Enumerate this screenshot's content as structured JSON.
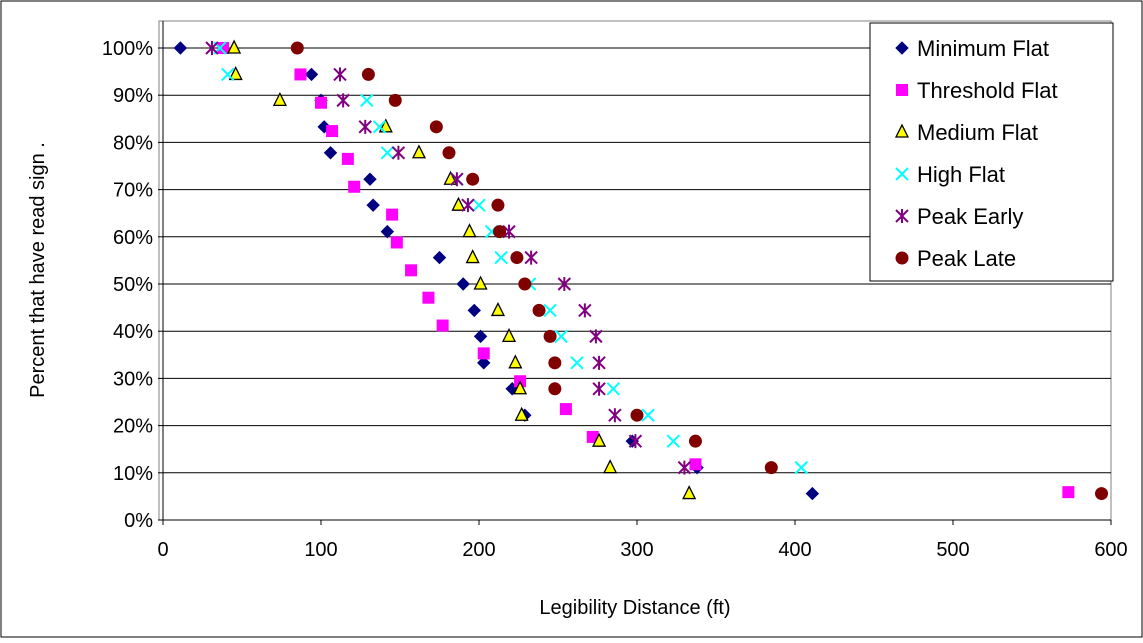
{
  "chart_data": {
    "type": "scatter",
    "title": "",
    "xlabel": "Legibility Distance (ft)",
    "ylabel": "Percent that have read sign .",
    "xlim": [
      0,
      600
    ],
    "ylim": [
      0,
      100
    ],
    "x_ticks": [
      "0",
      "100",
      "200",
      "300",
      "400",
      "500",
      "600"
    ],
    "y_ticks": [
      "0%",
      "10%",
      "20%",
      "30%",
      "40%",
      "50%",
      "60%",
      "70%",
      "80%",
      "90%",
      "100%"
    ],
    "grid": "horizontal",
    "legend_position": "top-right",
    "series": [
      {
        "name": "Minimum Flat",
        "marker": "diamond",
        "color": "#000080",
        "points": [
          [
            11,
            100
          ],
          [
            94,
            94.4
          ],
          [
            100,
            88.9
          ],
          [
            102,
            83.3
          ],
          [
            106,
            77.8
          ],
          [
            131,
            72.2
          ],
          [
            133,
            66.7
          ],
          [
            142,
            61.1
          ],
          [
            175,
            55.6
          ],
          [
            190,
            50
          ],
          [
            197,
            44.4
          ],
          [
            201,
            38.9
          ],
          [
            203,
            33.3
          ],
          [
            221,
            27.8
          ],
          [
            229,
            22.2
          ],
          [
            297,
            16.7
          ],
          [
            338,
            11.1
          ],
          [
            411,
            5.6
          ]
        ]
      },
      {
        "name": "Threshold Flat",
        "marker": "square",
        "color": "#FF00FF",
        "points": [
          [
            38,
            100
          ],
          [
            87,
            94.4
          ],
          [
            100,
            88.4
          ],
          [
            107,
            82.4
          ],
          [
            117,
            76.5
          ],
          [
            121,
            70.6
          ],
          [
            145,
            64.7
          ],
          [
            148,
            58.8
          ],
          [
            157,
            52.9
          ],
          [
            168,
            47.1
          ],
          [
            177,
            41.2
          ],
          [
            203,
            35.3
          ],
          [
            226,
            29.4
          ],
          [
            255,
            23.5
          ],
          [
            272,
            17.6
          ],
          [
            337,
            11.8
          ],
          [
            573,
            5.9
          ]
        ]
      },
      {
        "name": "Medium Flat",
        "marker": "triangle",
        "color": "#FFFF00",
        "points": [
          [
            45,
            100
          ],
          [
            46,
            94.4
          ],
          [
            74,
            88.9
          ],
          [
            141,
            83.3
          ],
          [
            162,
            77.8
          ],
          [
            182,
            72.2
          ],
          [
            187,
            66.7
          ],
          [
            194,
            61.1
          ],
          [
            196,
            55.6
          ],
          [
            201,
            50
          ],
          [
            212,
            44.4
          ],
          [
            219,
            38.9
          ],
          [
            223,
            33.3
          ],
          [
            226,
            27.8
          ],
          [
            227,
            22.2
          ],
          [
            276,
            16.7
          ],
          [
            283,
            11.1
          ],
          [
            333,
            5.6
          ]
        ]
      },
      {
        "name": "High Flat",
        "marker": "x",
        "color": "#00FFFF",
        "points": [
          [
            36,
            100
          ],
          [
            41,
            94.4
          ],
          [
            129,
            88.9
          ],
          [
            137,
            83.3
          ],
          [
            142,
            77.8
          ],
          [
            186,
            72.2
          ],
          [
            200,
            66.7
          ],
          [
            208,
            61.1
          ],
          [
            214,
            55.6
          ],
          [
            232,
            50
          ],
          [
            245,
            44.4
          ],
          [
            252,
            38.9
          ],
          [
            262,
            33.3
          ],
          [
            285,
            27.8
          ],
          [
            307,
            22.2
          ],
          [
            323,
            16.7
          ],
          [
            404,
            11.1
          ]
        ]
      },
      {
        "name": "Peak Early",
        "marker": "asterisk",
        "color": "#800080",
        "points": [
          [
            31,
            100
          ],
          [
            112,
            94.4
          ],
          [
            114,
            88.9
          ],
          [
            128,
            83.3
          ],
          [
            149,
            77.8
          ],
          [
            186,
            72.2
          ],
          [
            193,
            66.7
          ],
          [
            219,
            61.1
          ],
          [
            233,
            55.6
          ],
          [
            254,
            50
          ],
          [
            267,
            44.4
          ],
          [
            274,
            38.9
          ],
          [
            276,
            33.3
          ],
          [
            276,
            27.8
          ],
          [
            286,
            22.2
          ],
          [
            299,
            16.7
          ],
          [
            330,
            11.1
          ]
        ]
      },
      {
        "name": "Peak Late",
        "marker": "circle",
        "color": "#800000",
        "points": [
          [
            85,
            100
          ],
          [
            130,
            94.4
          ],
          [
            147,
            88.9
          ],
          [
            173,
            83.3
          ],
          [
            181,
            77.8
          ],
          [
            196,
            72.2
          ],
          [
            212,
            66.7
          ],
          [
            213,
            61.1
          ],
          [
            224,
            55.6
          ],
          [
            229,
            50
          ],
          [
            238,
            44.4
          ],
          [
            245,
            38.9
          ],
          [
            248,
            33.3
          ],
          [
            248,
            27.8
          ],
          [
            300,
            22.2
          ],
          [
            337,
            16.7
          ],
          [
            385,
            11.1
          ],
          [
            594,
            5.6
          ]
        ]
      }
    ]
  }
}
